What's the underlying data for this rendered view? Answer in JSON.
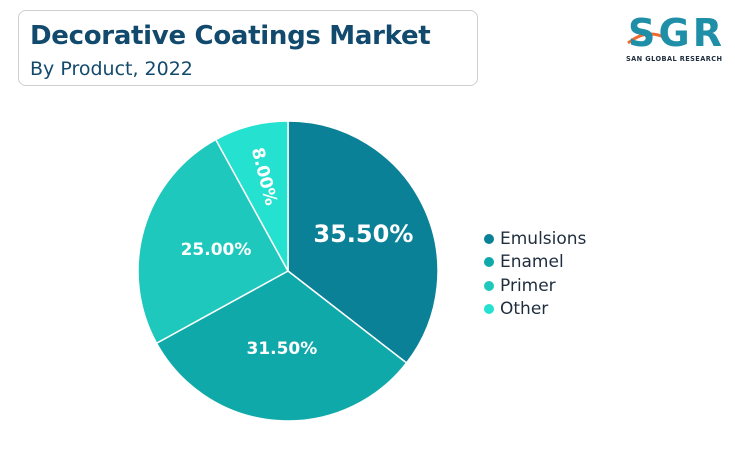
{
  "header": {
    "title": "Decorative Coatings Market",
    "subtitle": "By Product, 2022"
  },
  "logo": {
    "text": "SGR",
    "tagline": "SAN GLOBAL RESEARCH",
    "colors": {
      "primary": "#1f8fa8",
      "accent": "#ef6a2e"
    }
  },
  "chart_data": {
    "type": "pie",
    "title": "Decorative Coatings Market",
    "subtitle": "By Product, 2022",
    "legend_position": "right",
    "slices": [
      {
        "label": "Emulsions",
        "value": 35.5,
        "display": "35.50%",
        "color": "#0b8197"
      },
      {
        "label": "Enamel",
        "value": 31.5,
        "display": "31.50%",
        "color": "#10a9aa"
      },
      {
        "label": "Primer",
        "value": 25.0,
        "display": "25.00%",
        "color": "#1ec8bc"
      },
      {
        "label": "Other",
        "value": 8.0,
        "display": "8.00%",
        "color": "#24e1d0"
      }
    ]
  }
}
